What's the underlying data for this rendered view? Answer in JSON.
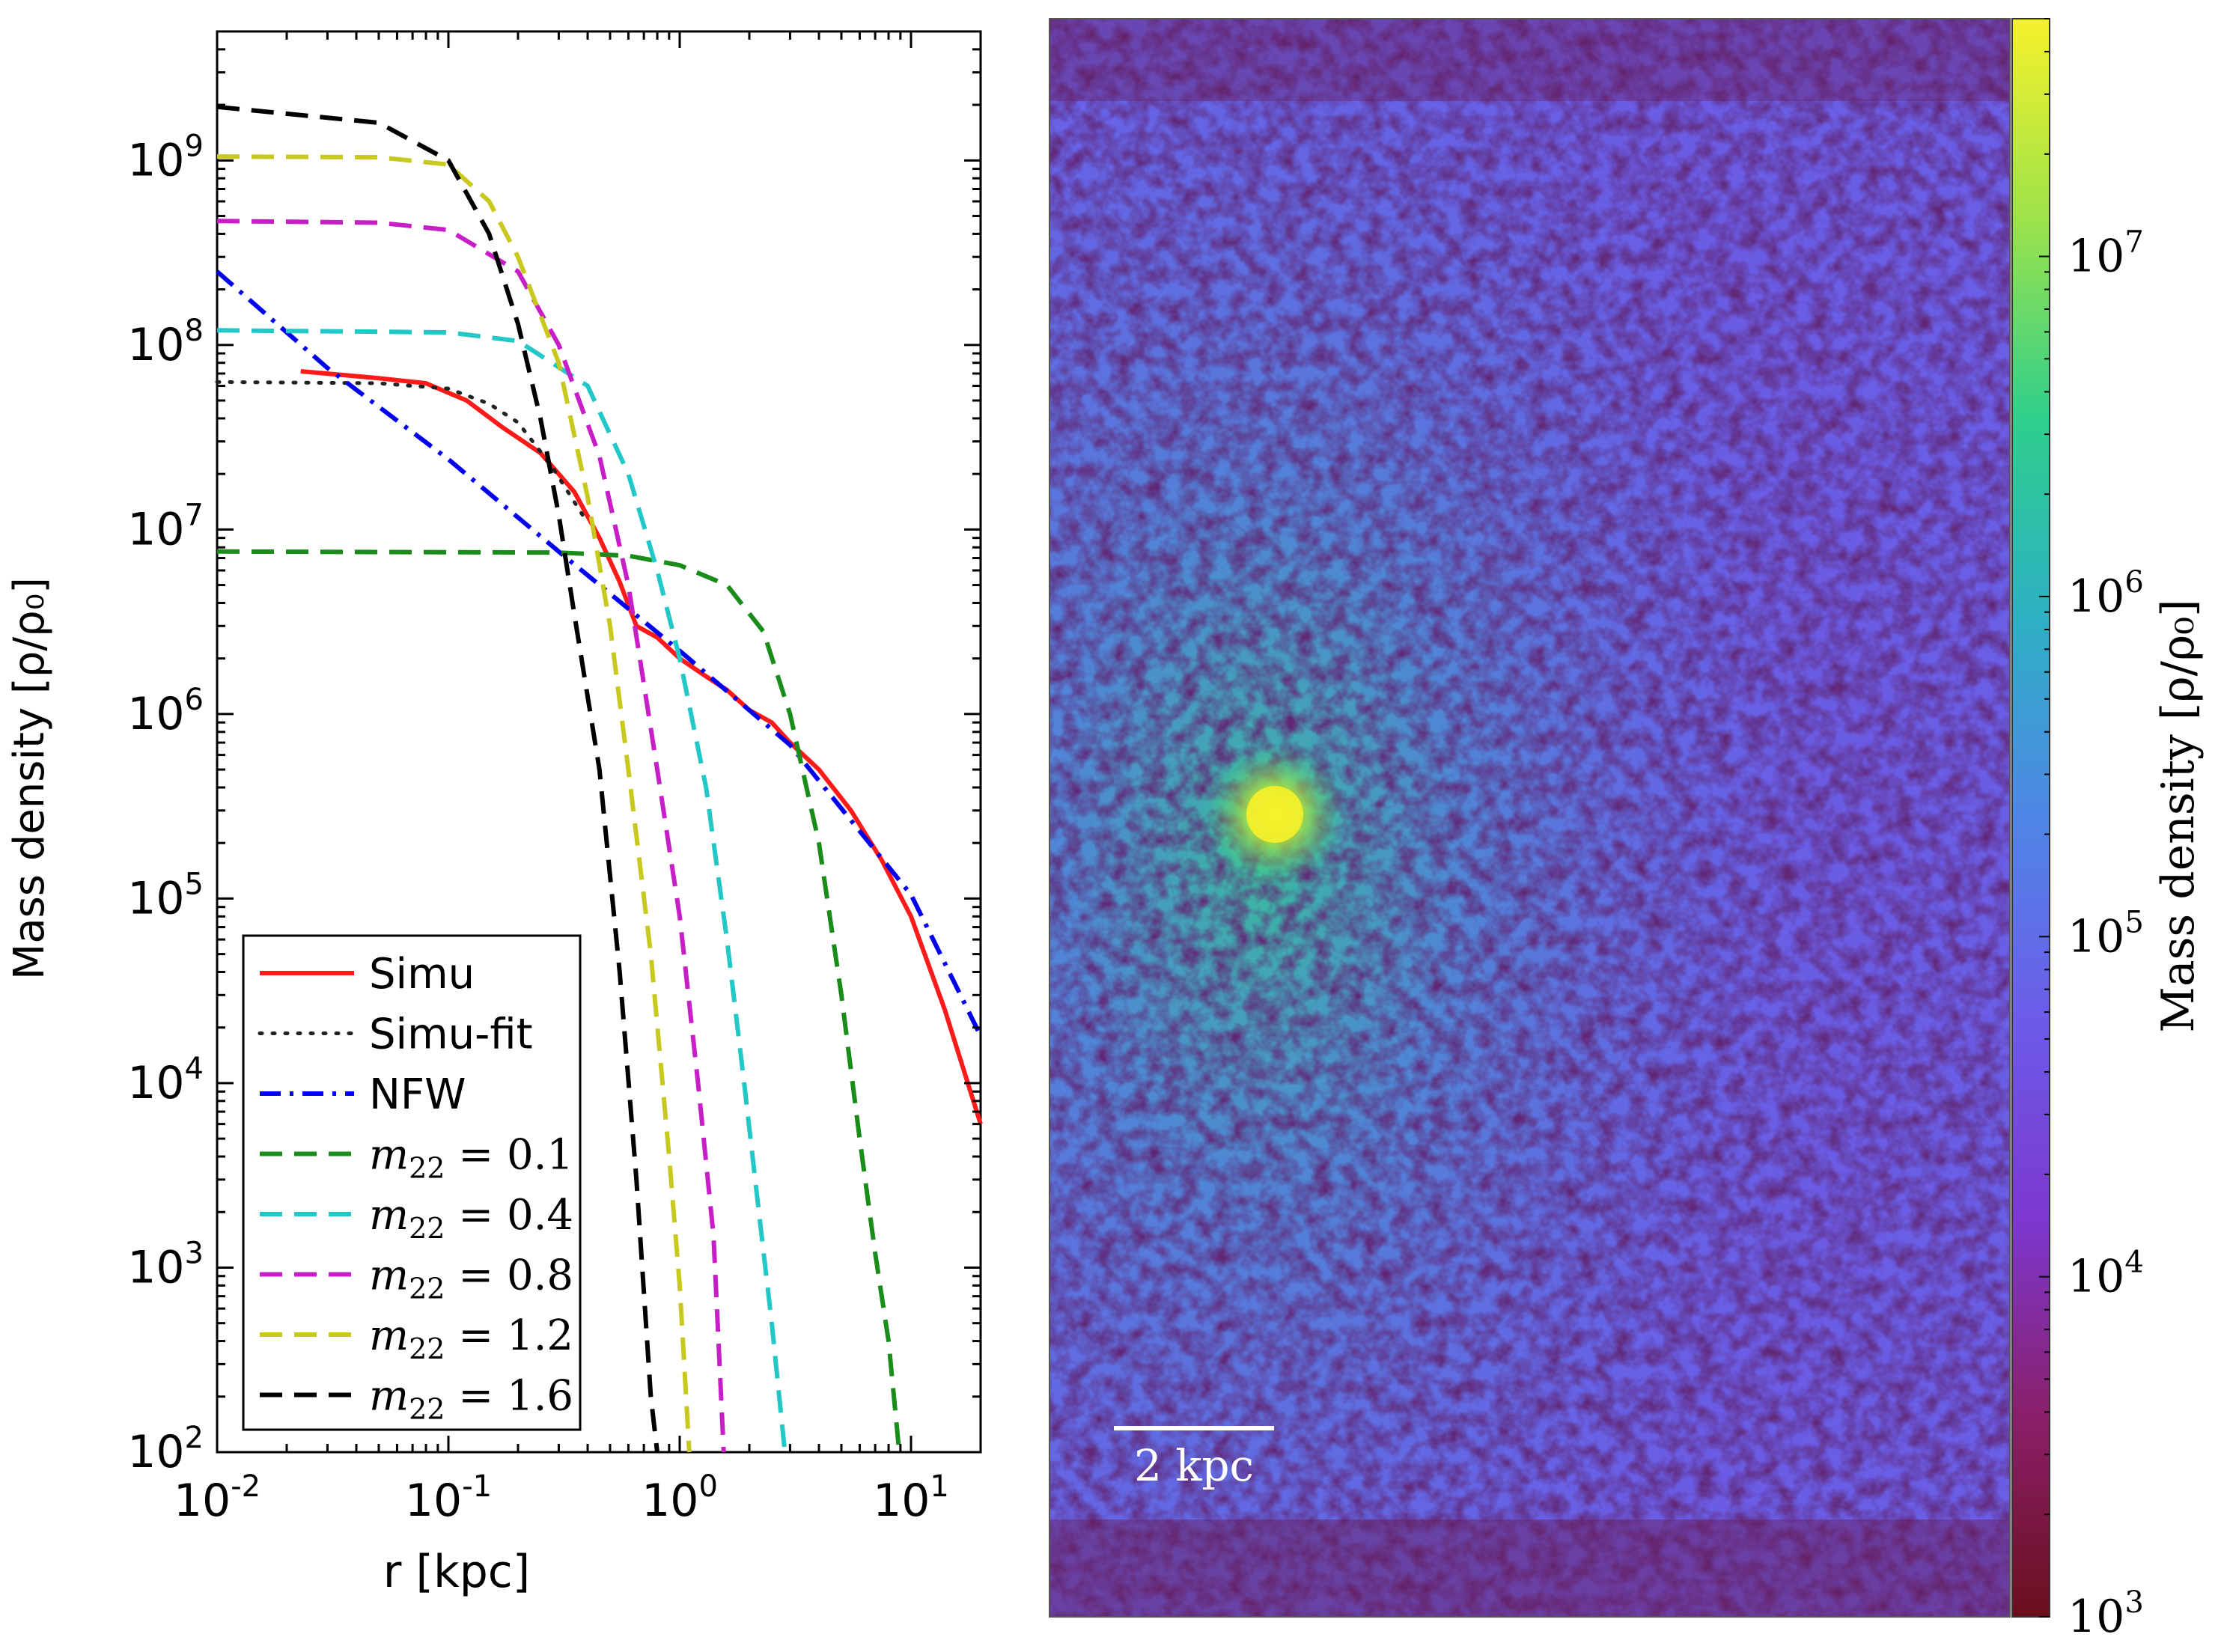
{
  "chart_data": [
    {
      "type": "line",
      "title": "",
      "xlabel": "r [kpc]",
      "ylabel": "Mass density [ρ/ρ₀]",
      "xscale": "log",
      "yscale": "log",
      "xlim": [
        0.01,
        20
      ],
      "ylim": [
        100,
        5000000000
      ],
      "x_ticks": [
        {
          "value": 0.01,
          "base": "10",
          "exp": "-2"
        },
        {
          "value": 0.1,
          "base": "10",
          "exp": "-1"
        },
        {
          "value": 1,
          "base": "10",
          "exp": "0"
        },
        {
          "value": 10,
          "base": "10",
          "exp": "1"
        }
      ],
      "y_ticks": [
        {
          "value": 100,
          "base": "10",
          "exp": "2"
        },
        {
          "value": 1000,
          "base": "10",
          "exp": "3"
        },
        {
          "value": 10000,
          "base": "10",
          "exp": "4"
        },
        {
          "value": 100000,
          "base": "10",
          "exp": "5"
        },
        {
          "value": 1000000,
          "base": "10",
          "exp": "6"
        },
        {
          "value": 10000000,
          "base": "10",
          "exp": "7"
        },
        {
          "value": 100000000,
          "base": "10",
          "exp": "8"
        },
        {
          "value": 1000000000,
          "base": "10",
          "exp": "9"
        }
      ],
      "legend_position": "bottom-left",
      "series": [
        {
          "name": "Simu",
          "label_type": "text",
          "color": "#ff1a1a",
          "style": "solid",
          "points": [
            [
              0.023,
              72000000.0
            ],
            [
              0.05,
              66000000.0
            ],
            [
              0.08,
              62000000.0
            ],
            [
              0.12,
              50000000.0
            ],
            [
              0.17,
              36000000.0
            ],
            [
              0.25,
              26000000.0
            ],
            [
              0.35,
              16000000.0
            ],
            [
              0.45,
              9000000.0
            ],
            [
              0.55,
              5200000.0
            ],
            [
              0.65,
              3000000.0
            ],
            [
              0.8,
              2600000.0
            ],
            [
              1.0,
              2000000.0
            ],
            [
              1.3,
              1600000.0
            ],
            [
              1.6,
              1350000.0
            ],
            [
              2.0,
              1050000.0
            ],
            [
              2.5,
              900000.0
            ],
            [
              3.0,
              700000.0
            ],
            [
              4.0,
              500000.0
            ],
            [
              5.5,
              300000.0
            ],
            [
              7.5,
              160000.0
            ],
            [
              10,
              80000.0
            ],
            [
              14,
              25000.0
            ],
            [
              20,
              6000.0
            ]
          ]
        },
        {
          "name": "Simu-fit",
          "label_type": "text",
          "color": "#222222",
          "style": "dotted",
          "points": [
            [
              0.01,
              63000000.0
            ],
            [
              0.05,
              62000000.0
            ],
            [
              0.1,
              58000000.0
            ],
            [
              0.15,
              48000000.0
            ],
            [
              0.2,
              38000000.0
            ],
            [
              0.28,
              22000000.0
            ],
            [
              0.38,
              12000000.0
            ]
          ]
        },
        {
          "name": "NFW",
          "label_type": "text",
          "color": "#0000ee",
          "style": "dashdot",
          "points": [
            [
              0.01,
              250000000.0
            ],
            [
              0.03,
              75000000.0
            ],
            [
              0.1,
              24000000.0
            ],
            [
              0.3,
              7600000.0
            ],
            [
              1.0,
              2200000.0
            ],
            [
              3.0,
              680000.0
            ],
            [
              10,
              105000.0
            ],
            [
              20,
              18000.0
            ]
          ]
        },
        {
          "name": "m22 = 0.1",
          "label_type": "math",
          "label_sub": "22",
          "label_value": "0.1",
          "color": "#1a8c1a",
          "style": "dashed",
          "points": [
            [
              0.01,
              7600000.0
            ],
            [
              0.3,
              7500000.0
            ],
            [
              0.6,
              7200000.0
            ],
            [
              1.0,
              6400000.0
            ],
            [
              1.6,
              5000000.0
            ],
            [
              2.3,
              2800000.0
            ],
            [
              3.0,
              1000000.0
            ],
            [
              4.0,
              200000.0
            ],
            [
              5.0,
              30000.0
            ],
            [
              6.0,
              5000.0
            ],
            [
              7.0,
              1200.0
            ],
            [
              8.0,
              400.0
            ],
            [
              8.9,
              100.0
            ]
          ]
        },
        {
          "name": "m22 = 0.4",
          "label_type": "math",
          "label_sub": "22",
          "label_value": "0.4",
          "color": "#22c8c8",
          "style": "dashed",
          "points": [
            [
              0.01,
              120000000.0
            ],
            [
              0.1,
              117000000.0
            ],
            [
              0.2,
              105000000.0
            ],
            [
              0.4,
              60000000.0
            ],
            [
              0.6,
              20000000.0
            ],
            [
              0.8,
              6000000.0
            ],
            [
              1.0,
              2000000.0
            ],
            [
              1.3,
              400000.0
            ],
            [
              1.6,
              60000.0
            ],
            [
              1.9,
              10000.0
            ],
            [
              2.2,
              2000.0
            ],
            [
              2.5,
              500.0
            ],
            [
              2.85,
              100.0
            ]
          ]
        },
        {
          "name": "m22 = 0.8",
          "label_type": "math",
          "label_sub": "22",
          "label_value": "0.8",
          "color": "#c81ec8",
          "style": "dashed",
          "points": [
            [
              0.01,
              470000000.0
            ],
            [
              0.05,
              460000000.0
            ],
            [
              0.1,
              420000000.0
            ],
            [
              0.2,
              250000000.0
            ],
            [
              0.3,
              100000000.0
            ],
            [
              0.45,
              25000000.0
            ],
            [
              0.6,
              5000000.0
            ],
            [
              0.8,
              500000.0
            ],
            [
              1.0,
              80000.0
            ],
            [
              1.2,
              10000.0
            ],
            [
              1.4,
              1500.0
            ],
            [
              1.55,
              100.0
            ]
          ]
        },
        {
          "name": "m22 = 1.2",
          "label_type": "math",
          "label_sub": "22",
          "label_value": "1.2",
          "color": "#c8c81e",
          "style": "dashed",
          "points": [
            [
              0.01,
              1050000000.0
            ],
            [
              0.05,
              1040000000.0
            ],
            [
              0.1,
              950000000.0
            ],
            [
              0.15,
              600000000.0
            ],
            [
              0.2,
              300000000.0
            ],
            [
              0.3,
              80000000.0
            ],
            [
              0.4,
              15000000.0
            ],
            [
              0.5,
              3000000.0
            ],
            [
              0.6,
              500000.0
            ],
            [
              0.75,
              50000.0
            ],
            [
              0.9,
              4000.0
            ],
            [
              1.0,
              800.0
            ],
            [
              1.1,
              100.0
            ]
          ]
        },
        {
          "name": "m22 = 1.6",
          "label_type": "math",
          "label_sub": "22",
          "label_value": "1.6",
          "color": "#000000",
          "style": "dashed",
          "points": [
            [
              0.01,
              1950000000.0
            ],
            [
              0.05,
              1600000000.0
            ],
            [
              0.1,
              1000000000.0
            ],
            [
              0.15,
              400000000.0
            ],
            [
              0.2,
              130000000.0
            ],
            [
              0.25,
              40000000.0
            ],
            [
              0.3,
              12000000.0
            ],
            [
              0.35,
              3500000.0
            ],
            [
              0.45,
              500000.0
            ],
            [
              0.55,
              40000.0
            ],
            [
              0.65,
              3000.0
            ],
            [
              0.75,
              200.0
            ],
            [
              0.8,
              100.0
            ]
          ]
        }
      ]
    },
    {
      "type": "heatmap",
      "title": "",
      "colorbar_label": "Mass density [ρ/ρ₀]",
      "colorbar_scale": "log",
      "colorbar_range": [
        1000,
        50000000
      ],
      "colorbar_ticks": [
        {
          "value": 10000000,
          "base": "10",
          "exp": "7"
        },
        {
          "value": 1000000,
          "base": "10",
          "exp": "6"
        },
        {
          "value": 100000,
          "base": "10",
          "exp": "5"
        },
        {
          "value": 10000,
          "base": "10",
          "exp": "4"
        },
        {
          "value": 1000,
          "base": "10",
          "exp": "3"
        }
      ],
      "colormap": [
        "#6b0f1c",
        "#8a1f6a",
        "#7c38d0",
        "#6c5ce8",
        "#4f86e6",
        "#2eb0c4",
        "#2fcf8c",
        "#9de34a",
        "#f6f12a"
      ],
      "scale_bar_label": "2 kpc",
      "peak_location": "left-center"
    }
  ]
}
